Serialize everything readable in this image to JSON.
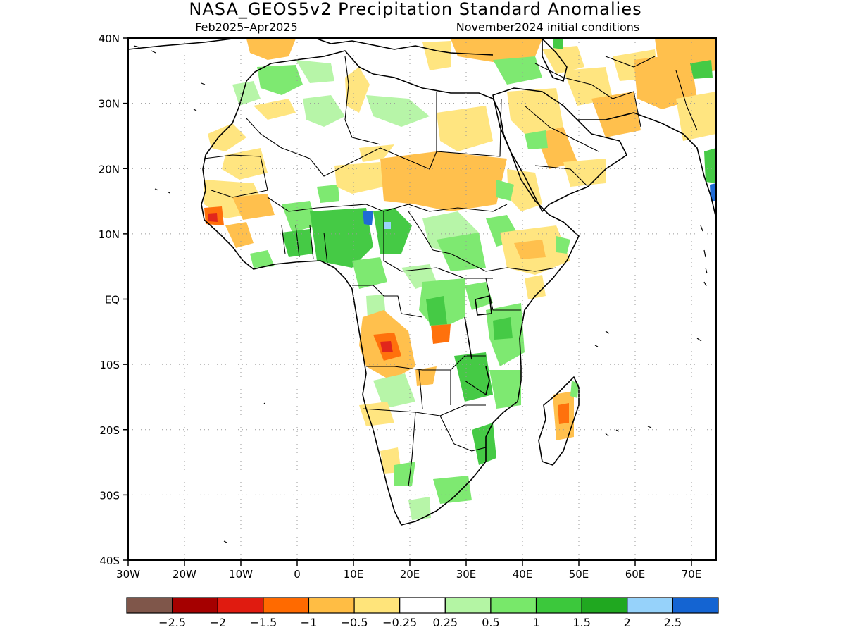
{
  "title": "NASA_GEOS5v2 Precipitation Standard Anomalies",
  "subtitle_left": "Feb2025–Apr2025",
  "subtitle_right": "November2024 initial conditions",
  "lat_ticks": [
    "40N",
    "30N",
    "20N",
    "10N",
    "EQ",
    "10S",
    "20S",
    "30S",
    "40S"
  ],
  "lon_ticks": [
    "30W",
    "20W",
    "10W",
    "0",
    "10E",
    "20E",
    "30E",
    "40E",
    "50E",
    "60E",
    "70E"
  ],
  "colorbar": {
    "colors": [
      "#7f564a",
      "#a50000",
      "#e01b10",
      "#ff6a00",
      "#ffbd44",
      "#ffe47a",
      "#ffffff",
      "#b4f5a4",
      "#78e86a",
      "#3cc83c",
      "#20a820",
      "#96d2fa",
      "#1464d2"
    ],
    "labels": [
      "−2.5",
      "−2",
      "−1.5",
      "−1",
      "−0.5",
      "−0.25",
      "0.25",
      "0.5",
      "1",
      "1.5",
      "2",
      "2.5"
    ]
  }
}
